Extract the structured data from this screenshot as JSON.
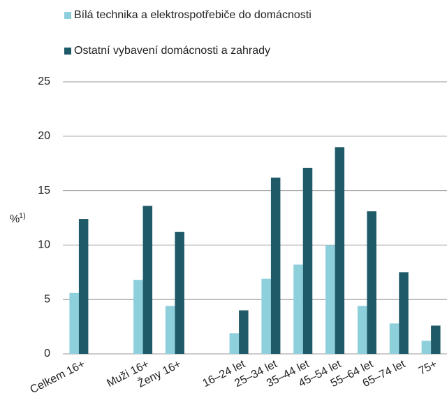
{
  "chart_data": {
    "type": "bar",
    "categories": [
      "Celkem 16+",
      null,
      "Muži 16+",
      "Ženy 16+",
      null,
      "16–24 let",
      "25–34 let",
      "35–44 let",
      "45–54 let",
      "55–64 let",
      "65–74 let",
      "75+"
    ],
    "series": [
      {
        "name": "Bílá technika a elektrospotřebiče do domácnosti",
        "color": "#8ecfdc",
        "values": [
          5.6,
          null,
          6.8,
          4.4,
          null,
          1.9,
          6.9,
          8.2,
          10.0,
          4.4,
          2.8,
          1.2
        ]
      },
      {
        "name": "Ostatní vybavení domácnosti a zahrady",
        "color": "#1f5a68",
        "values": [
          12.4,
          null,
          13.6,
          11.2,
          null,
          4.0,
          16.2,
          17.1,
          19.0,
          13.1,
          7.5,
          2.6
        ]
      }
    ],
    "y_label": "%",
    "y_label_sup": "1)",
    "ylim": [
      0,
      25
    ],
    "yticks": [
      0,
      5,
      10,
      15,
      20,
      25
    ],
    "grid": true,
    "legend": "top"
  }
}
